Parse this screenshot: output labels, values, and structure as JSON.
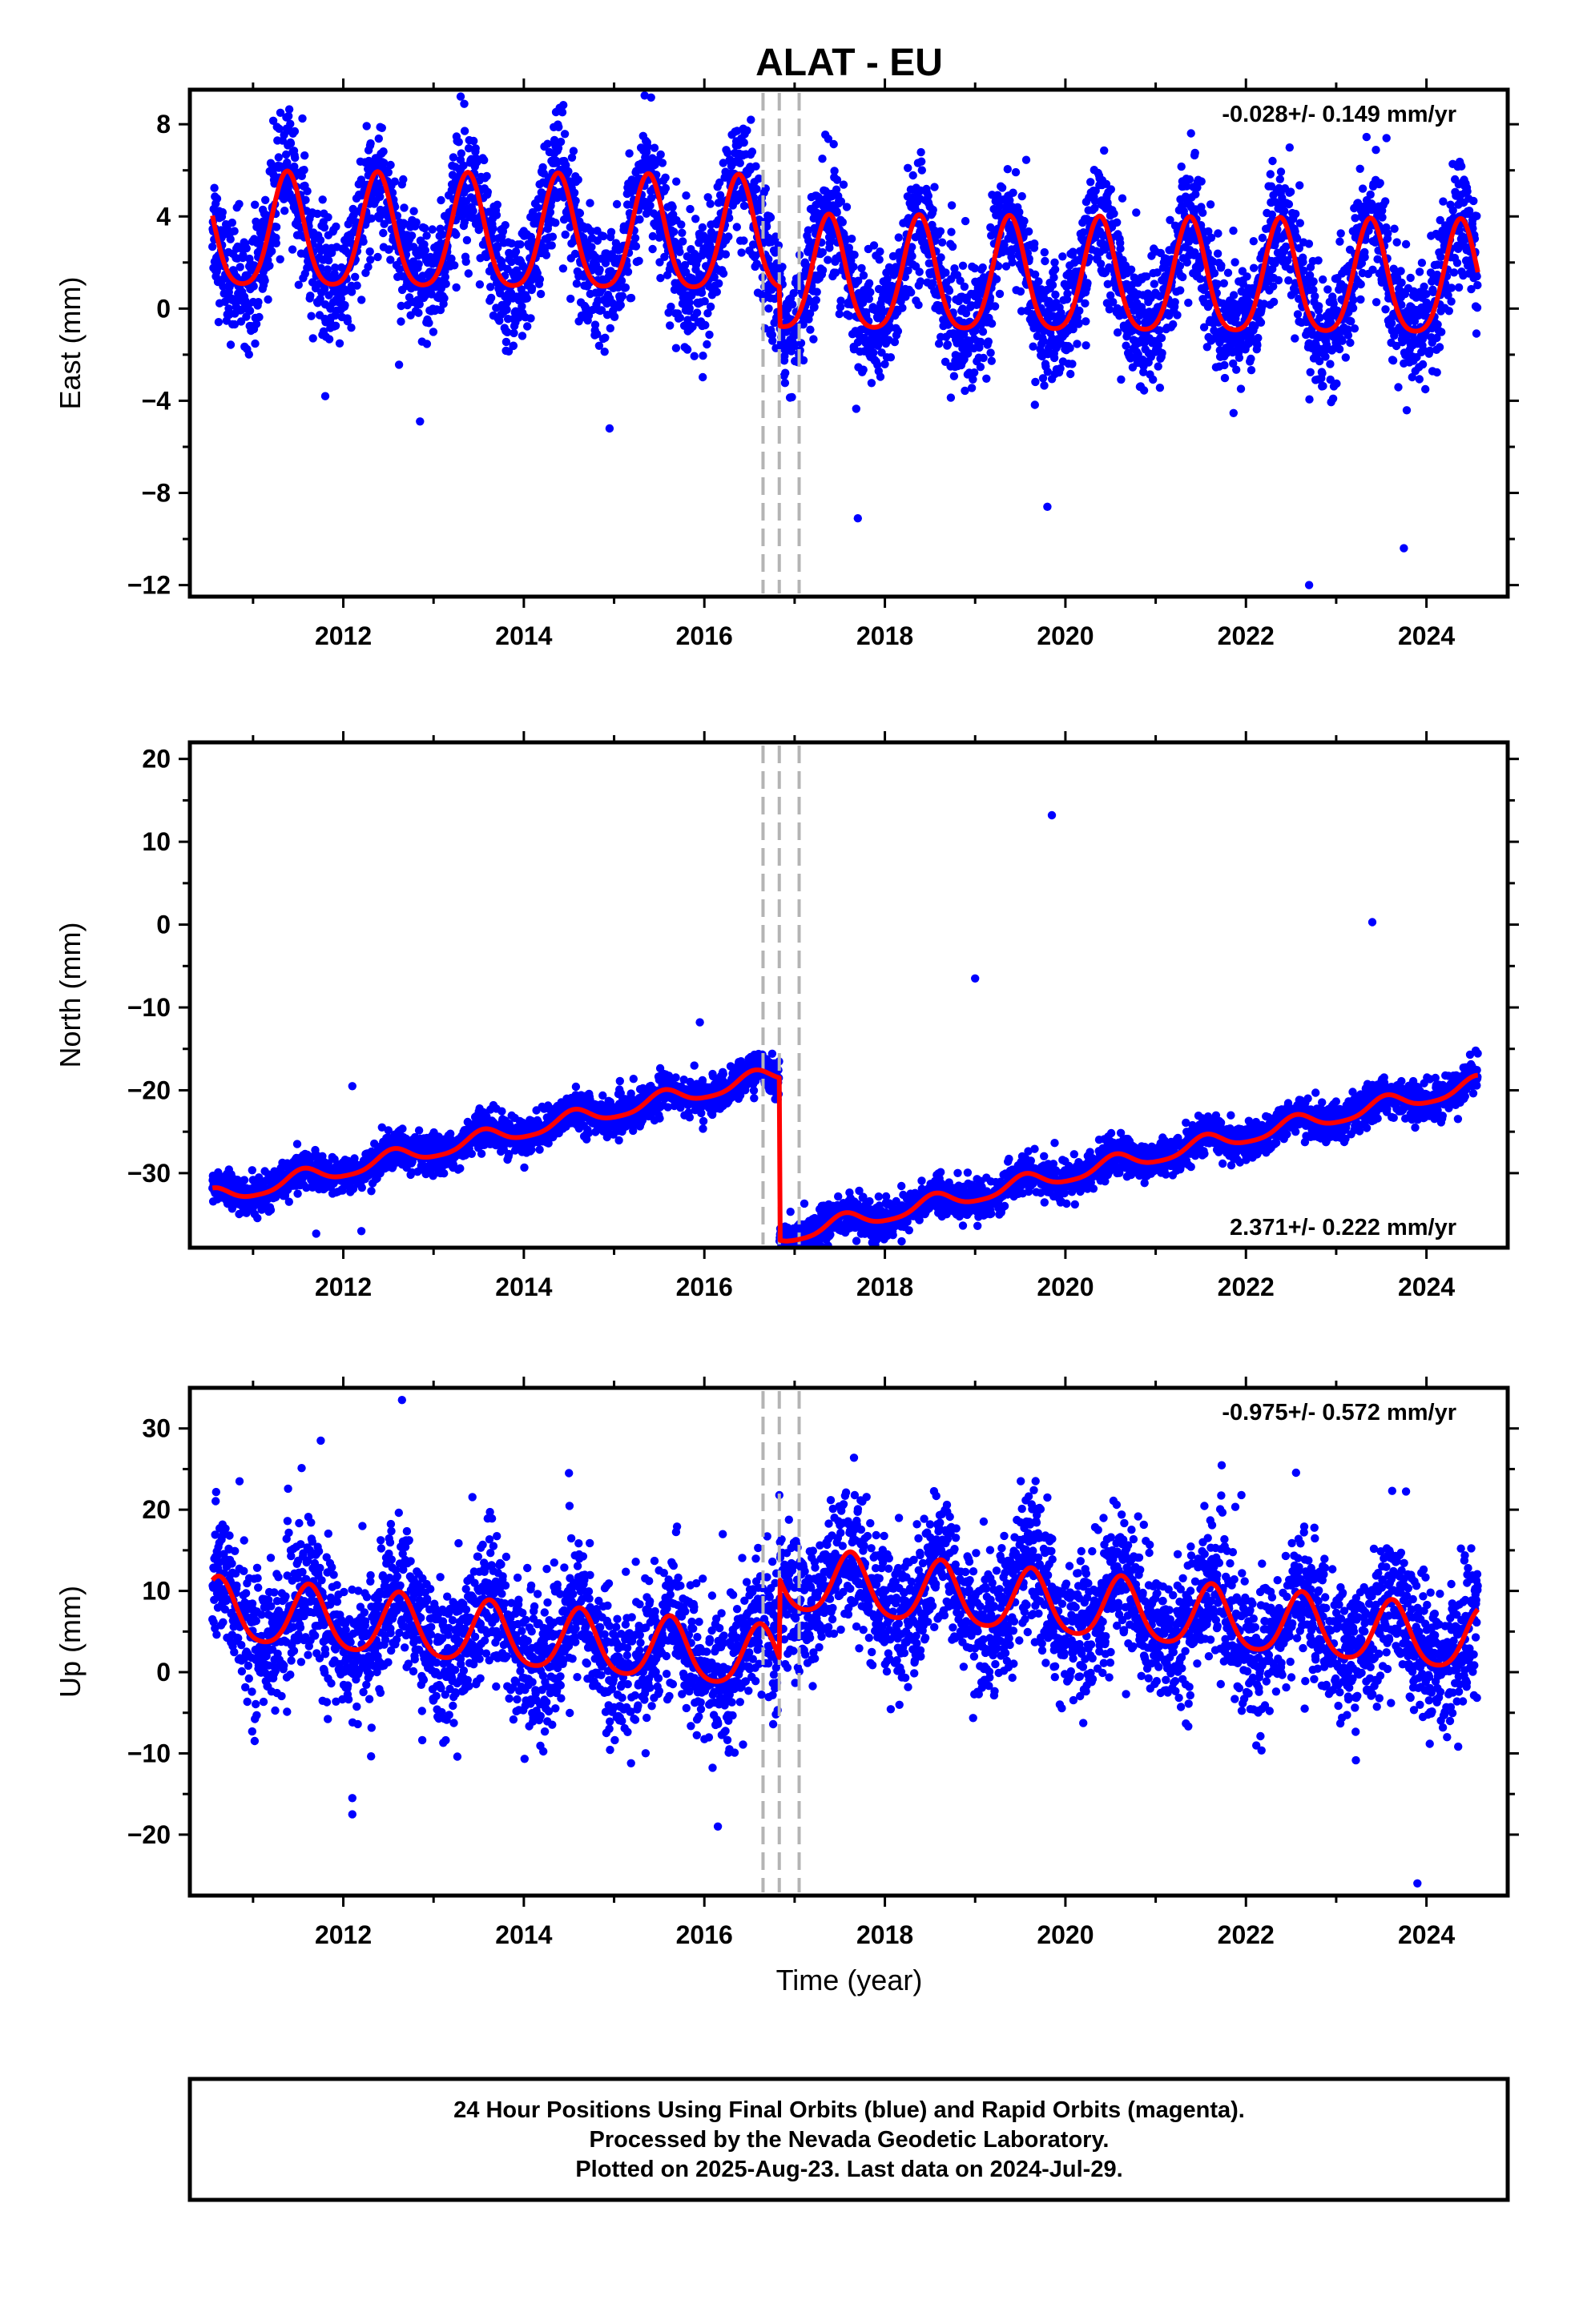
{
  "title": "ALAT - EU",
  "footer": {
    "line1": "24 Hour Positions Using Final Orbits (blue) and Rapid Orbits (magenta).",
    "line2": "Processed by the Nevada Geodetic Laboratory.",
    "line3": "Plotted on 2025-Aug-23. Last data on 2024-Jul-29."
  },
  "colors": {
    "points": "#0000ff",
    "model": "#ff0000",
    "steps": "#b4b4b4",
    "frame": "#000000"
  },
  "chart_data": [
    {
      "type": "scatter",
      "name": "east",
      "ylabel": "East (mm)",
      "xlabel": "",
      "xlim": [
        2010.3,
        2024.9
      ],
      "ylim": [
        -12.5,
        9.5
      ],
      "xticks": [
        2012,
        2014,
        2016,
        2018,
        2020,
        2022,
        2024
      ],
      "yticks": [
        8,
        4,
        0,
        -4,
        -8,
        -12
      ],
      "ytick_labels": [
        "8",
        "4",
        "0",
        "−4",
        "−8",
        "−12"
      ],
      "rate_text": "-0.028+/- 0.149 mm/yr",
      "rate_position": "top-right",
      "data_span": [
        2010.55,
        2024.57
      ],
      "step_epochs": [
        2016.65,
        2016.83,
        2017.05
      ],
      "model": {
        "offset_before": 2.9,
        "offset_after": -1.7,
        "offset_at": 2016.83,
        "trend": -0.028,
        "annual_amplitude": 2.45,
        "annual_peak_phase": 0.38,
        "semiannual_amplitude": 0.45,
        "noise_sd": 1.3
      },
      "outliers": [
        [
          2013.3,
          9.2
        ],
        [
          2014.95,
          -5.2
        ],
        [
          2012.85,
          -4.9
        ],
        [
          2017.7,
          -9.1
        ],
        [
          2022.7,
          -12.0
        ],
        [
          2023.75,
          -10.4
        ],
        [
          2011.8,
          -3.8
        ],
        [
          2019.8,
          -8.6
        ]
      ]
    },
    {
      "type": "scatter",
      "name": "north",
      "ylabel": "North (mm)",
      "xlabel": "",
      "xlim": [
        2010.3,
        2024.9
      ],
      "ylim": [
        -39,
        22
      ],
      "xticks": [
        2012,
        2014,
        2016,
        2018,
        2020,
        2022,
        2024
      ],
      "yticks": [
        20,
        10,
        0,
        -10,
        -20,
        -30
      ],
      "ytick_labels": [
        "20",
        "10",
        "0",
        "−10",
        "−20",
        "−30"
      ],
      "rate_text": "2.371+/- 0.222 mm/yr",
      "rate_position": "bottom-right",
      "data_span": [
        2010.55,
        2024.57
      ],
      "step_epochs": [
        2016.65,
        2016.83,
        2017.05
      ],
      "model": {
        "offset_before": -33.0,
        "offset_after": -19.6,
        "offset_at": 2016.83,
        "ref_year": 2010.55,
        "trend": 2.371,
        "annual_amplitude": 1.0,
        "annual_peak_phase": 0.55,
        "semiannual_amplitude": 0.2,
        "noise_sd": 1.1
      },
      "outliers": [
        [
          2015.95,
          -11.8
        ],
        [
          2019.0,
          -6.5
        ],
        [
          2023.4,
          0.3
        ],
        [
          2012.1,
          -19.5
        ],
        [
          2011.7,
          -37.3
        ],
        [
          2019.85,
          13.2
        ],
        [
          2012.2,
          -37.0
        ]
      ]
    },
    {
      "type": "scatter",
      "name": "up",
      "ylabel": "Up (mm)",
      "xlabel": "Time (year)",
      "xlim": [
        2010.3,
        2024.9
      ],
      "ylim": [
        -27.5,
        35
      ],
      "xticks": [
        2012,
        2014,
        2016,
        2018,
        2020,
        2022,
        2024
      ],
      "yticks": [
        30,
        20,
        10,
        0,
        -10,
        -20
      ],
      "ytick_labels": [
        "30",
        "20",
        "10",
        "0",
        "−10",
        "−20"
      ],
      "rate_text": "-0.975+/- 0.572 mm/yr",
      "rate_position": "top-right",
      "data_span": [
        2010.55,
        2024.57
      ],
      "step_epochs": [
        2016.65,
        2016.83,
        2017.05
      ],
      "model": {
        "offset_before": 7.5,
        "offset_after": 9.8,
        "offset_at": 2016.83,
        "ref_year": 2010.55,
        "trend": -0.975,
        "annual_amplitude": 3.8,
        "annual_peak_phase": 0.62,
        "semiannual_amplitude": 0.6,
        "noise_sd": 4.2
      },
      "outliers": [
        [
          2012.65,
          33.5
        ],
        [
          2011.75,
          28.5
        ],
        [
          2012.1,
          -15.5
        ],
        [
          2012.1,
          -17.5
        ],
        [
          2016.15,
          -19.0
        ],
        [
          2017.75,
          21.0
        ],
        [
          2019.8,
          21.5
        ],
        [
          2021.95,
          21.8
        ],
        [
          2023.9,
          -26.0
        ],
        [
          2014.5,
          24.5
        ],
        [
          2010.85,
          23.5
        ]
      ]
    }
  ]
}
